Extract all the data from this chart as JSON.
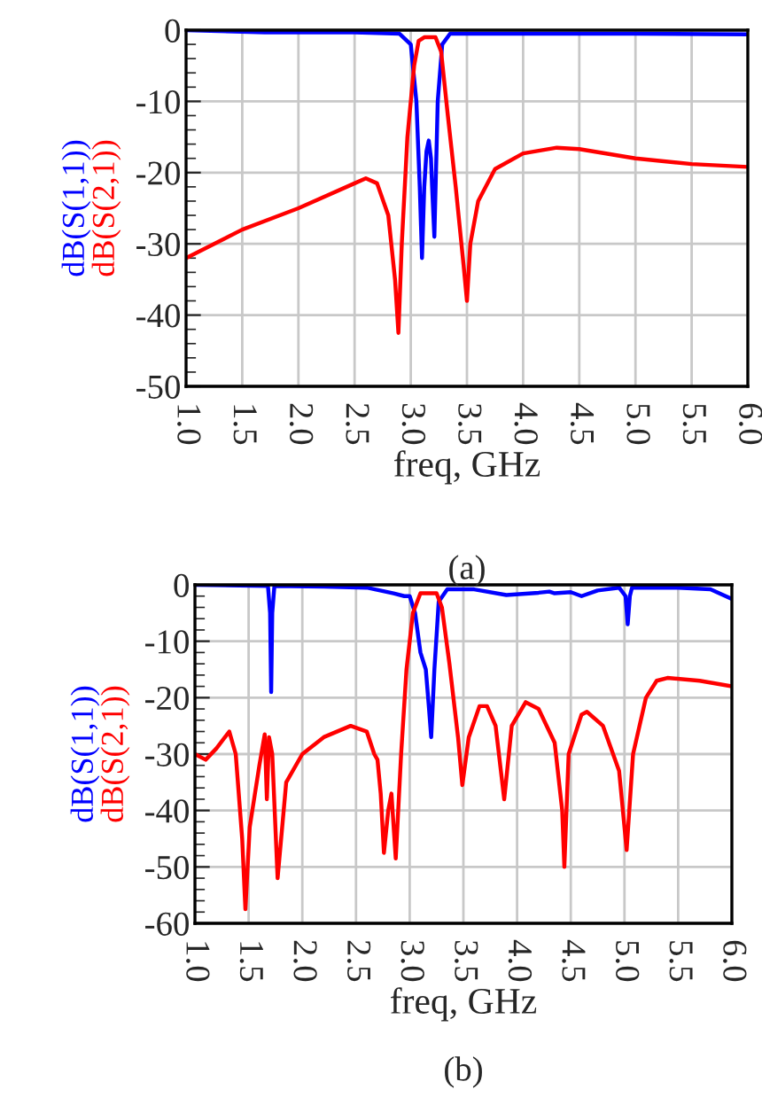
{
  "chart_data": [
    {
      "type": "line",
      "xlabel": "freq, GHz",
      "annotations": [
        "(a)"
      ],
      "grid": true,
      "legend": false,
      "xlim": [
        1.0,
        6.0
      ],
      "ylim": [
        -50,
        0
      ],
      "xticks": [
        {
          "value": 1.0,
          "label": "1.0"
        },
        {
          "value": 1.5,
          "label": "1.5"
        },
        {
          "value": 2.0,
          "label": "2.0"
        },
        {
          "value": 2.5,
          "label": "2.5"
        },
        {
          "value": 3.0,
          "label": "3.0"
        },
        {
          "value": 3.5,
          "label": "3.5"
        },
        {
          "value": 4.0,
          "label": "4.0"
        },
        {
          "value": 4.5,
          "label": "4.5"
        },
        {
          "value": 5.0,
          "label": "5.0"
        },
        {
          "value": 5.5,
          "label": "5.5"
        },
        {
          "value": 6.0,
          "label": "6.0"
        }
      ],
      "yticks": [
        -50,
        -40,
        -30,
        -20,
        -10,
        0
      ],
      "series": [
        {
          "name": "dB(S(1,1))",
          "color": "#0000ff",
          "x": [
            1.0,
            1.7,
            2.5,
            2.9,
            3.0,
            3.05,
            3.08,
            3.1,
            3.12,
            3.14,
            3.16,
            3.18,
            3.19,
            3.21,
            3.24,
            3.28,
            3.35,
            4.0,
            5.0,
            6.0
          ],
          "values": [
            0,
            -0.3,
            -0.3,
            -0.5,
            -2,
            -10,
            -22,
            -32,
            -22,
            -17,
            -15.5,
            -18,
            -22,
            -29,
            -10,
            -2,
            -0.5,
            -0.5,
            -0.5,
            -0.6
          ]
        },
        {
          "name": "dB(S(2,1))",
          "color": "#ff0000",
          "x": [
            1.0,
            1.5,
            2.0,
            2.5,
            2.6,
            2.7,
            2.8,
            2.86,
            2.89,
            2.92,
            2.97,
            3.03,
            3.07,
            3.12,
            3.22,
            3.27,
            3.33,
            3.4,
            3.47,
            3.5,
            3.53,
            3.6,
            3.75,
            4.0,
            4.3,
            4.5,
            5.0,
            5.5,
            6.0
          ],
          "values": [
            -32,
            -28,
            -25,
            -21.5,
            -20.8,
            -21.5,
            -26,
            -35,
            -42.5,
            -30,
            -15,
            -5,
            -1.5,
            -1,
            -1,
            -3,
            -12,
            -22,
            -33,
            -38,
            -30,
            -24,
            -19.5,
            -17.3,
            -16.5,
            -16.7,
            -18,
            -18.8,
            -19.2
          ]
        }
      ]
    },
    {
      "type": "line",
      "xlabel": "freq, GHz",
      "annotations": [
        "(b)"
      ],
      "grid": true,
      "legend": false,
      "xlim": [
        1.0,
        6.0
      ],
      "ylim": [
        -60,
        0
      ],
      "xticks": [
        {
          "value": 1.0,
          "label": "1.0"
        },
        {
          "value": 1.5,
          "label": "1.5"
        },
        {
          "value": 2.0,
          "label": "2.0"
        },
        {
          "value": 2.5,
          "label": "2.5"
        },
        {
          "value": 3.0,
          "label": "3.0"
        },
        {
          "value": 3.5,
          "label": "3.5"
        },
        {
          "value": 4.0,
          "label": "4.0"
        },
        {
          "value": 4.5,
          "label": "4.5"
        },
        {
          "value": 5.0,
          "label": "5.0"
        },
        {
          "value": 5.5,
          "label": "5.5"
        },
        {
          "value": 6.0,
          "label": "6.0"
        }
      ],
      "yticks": [
        -60,
        -50,
        -40,
        -30,
        -20,
        -10,
        0
      ],
      "series": [
        {
          "name": "dB(S(1,1))",
          "color": "#0000ff",
          "x": [
            1.0,
            1.68,
            1.7,
            1.71,
            1.72,
            1.74,
            2.2,
            2.6,
            2.85,
            2.95,
            3.0,
            3.05,
            3.1,
            3.15,
            3.18,
            3.2,
            3.23,
            3.27,
            3.35,
            3.6,
            3.9,
            4.2,
            4.3,
            4.35,
            4.5,
            4.6,
            4.75,
            4.95,
            5.01,
            5.03,
            5.05,
            5.07,
            5.5,
            5.8,
            6.0
          ],
          "values": [
            0,
            -0.2,
            -5,
            -19,
            -5,
            -0.2,
            -0.3,
            -0.5,
            -1.5,
            -2,
            -2,
            -5,
            -12,
            -15,
            -22,
            -27,
            -15,
            -3,
            -0.8,
            -0.8,
            -1.8,
            -1.4,
            -1.2,
            -1.5,
            -1.3,
            -2,
            -1,
            -0.5,
            -2,
            -7,
            -2,
            -0.5,
            -0.5,
            -0.8,
            -2.5
          ]
        },
        {
          "name": "dB(S(2,1))",
          "color": "#ff0000",
          "x": [
            1.0,
            1.1,
            1.2,
            1.32,
            1.38,
            1.44,
            1.47,
            1.51,
            1.6,
            1.65,
            1.67,
            1.69,
            1.72,
            1.77,
            1.85,
            2.0,
            2.2,
            2.45,
            2.6,
            2.67,
            2.7,
            2.73,
            2.76,
            2.8,
            2.83,
            2.87,
            2.92,
            2.97,
            3.03,
            3.1,
            3.25,
            3.3,
            3.37,
            3.45,
            3.49,
            3.55,
            3.65,
            3.72,
            3.8,
            3.88,
            3.95,
            4.08,
            4.2,
            4.35,
            4.42,
            4.44,
            4.48,
            4.6,
            4.65,
            4.8,
            4.95,
            5.02,
            5.08,
            5.2,
            5.3,
            5.4,
            5.7,
            6.0
          ],
          "values": [
            -30,
            -31,
            -29,
            -26,
            -30,
            -45,
            -57.5,
            -43,
            -32,
            -26.5,
            -38,
            -27,
            -30,
            -52,
            -35,
            -30,
            -27,
            -25,
            -26,
            -30,
            -31,
            -37,
            -47.5,
            -40,
            -37,
            -48.5,
            -30,
            -15,
            -5,
            -1.5,
            -1.5,
            -4,
            -14,
            -27,
            -35.5,
            -27,
            -21.5,
            -21.5,
            -25,
            -38,
            -25,
            -20.8,
            -22,
            -28,
            -40,
            -50,
            -30,
            -23,
            -22.5,
            -25,
            -33,
            -47,
            -30,
            -20,
            -17,
            -16.5,
            -17,
            -18
          ]
        }
      ]
    }
  ]
}
